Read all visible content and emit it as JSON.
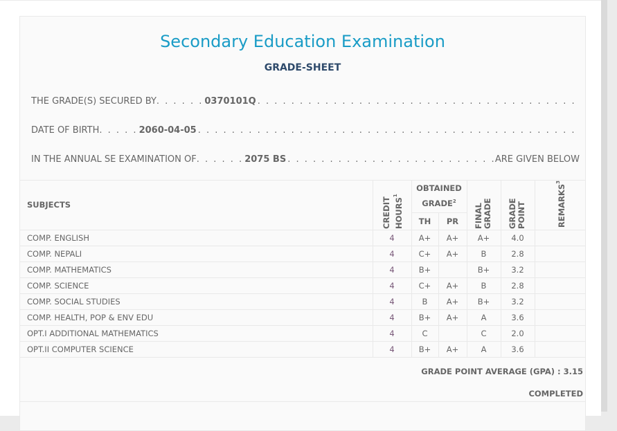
{
  "title": "Secondary Education Examination",
  "subtitle": "GRADE-SHEET",
  "secured_by": {
    "label": "THE GRADE(S) SECURED BY",
    "value": "0370101Q"
  },
  "dob": {
    "label": "DATE OF BIRTH",
    "value": "2060-04-05"
  },
  "exam": {
    "label": "IN THE ANNUAL SE EXAMINATION OF",
    "value": "2075 BS",
    "suffix": "ARE GIVEN BELOW"
  },
  "headers": {
    "subjects": "SUBJECTS",
    "credit": "CREDIT HOURS",
    "credit_sup": "1",
    "obtained": "OBTAINED GRADE",
    "obtained_sup": "2",
    "th": "TH",
    "pr": "PR",
    "final": "FINAL GRADE",
    "point": "GRADE POINT",
    "remarks": "REMARKS",
    "remarks_sup": "3"
  },
  "rows": [
    {
      "subject": "COMP. ENGLISH",
      "credit": "4",
      "th": "A+",
      "pr": "A+",
      "final": "A+",
      "point": "4.0",
      "remarks": ""
    },
    {
      "subject": "COMP. NEPALI",
      "credit": "4",
      "th": "C+",
      "pr": "A+",
      "final": "B",
      "point": "2.8",
      "remarks": ""
    },
    {
      "subject": "COMP. MATHEMATICS",
      "credit": "4",
      "th": "B+",
      "pr": "",
      "final": "B+",
      "point": "3.2",
      "remarks": ""
    },
    {
      "subject": "COMP. SCIENCE",
      "credit": "4",
      "th": "C+",
      "pr": "A+",
      "final": "B",
      "point": "2.8",
      "remarks": ""
    },
    {
      "subject": "COMP. SOCIAL STUDIES",
      "credit": "4",
      "th": "B",
      "pr": "A+",
      "final": "B+",
      "point": "3.2",
      "remarks": ""
    },
    {
      "subject": "COMP. HEALTH, POP & ENV EDU",
      "credit": "4",
      "th": "B+",
      "pr": "A+",
      "final": "A",
      "point": "3.6",
      "remarks": ""
    },
    {
      "subject": "OPT.I ADDITIONAL MATHEMATICS",
      "credit": "4",
      "th": "C",
      "pr": "",
      "final": "C",
      "point": "2.0",
      "remarks": ""
    },
    {
      "subject": "OPT.II COMPUTER SCIENCE",
      "credit": "4",
      "th": "B+",
      "pr": "A+",
      "final": "A",
      "point": "3.6",
      "remarks": ""
    }
  ],
  "gpa": "GRADE POINT AVERAGE (GPA) : 3.15",
  "status": "COMPLETED"
}
